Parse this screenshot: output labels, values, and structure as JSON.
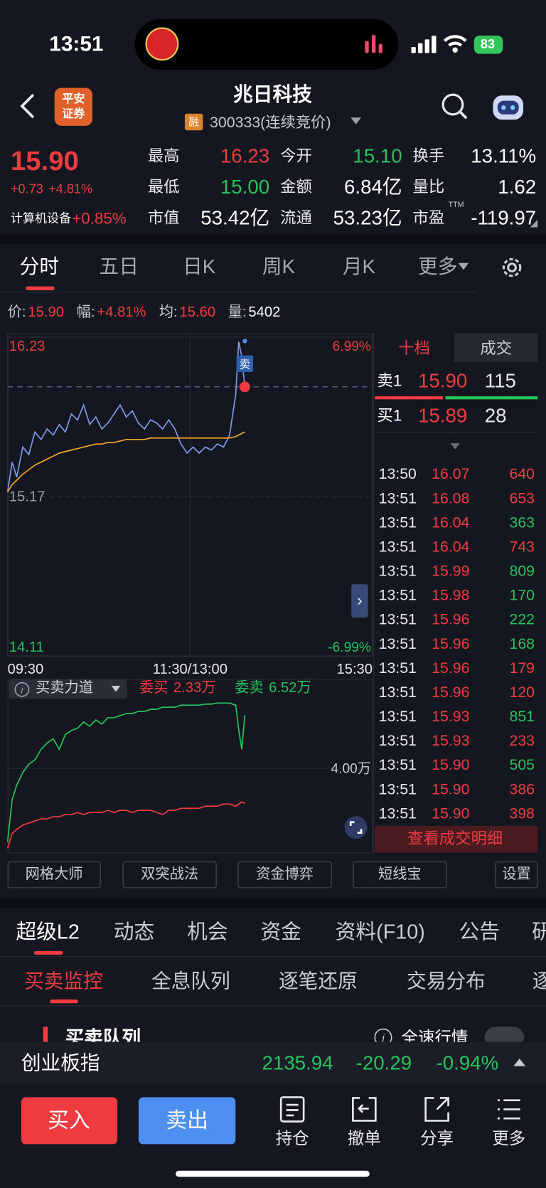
{
  "status_bar": {
    "time": "13:51",
    "battery": "83"
  },
  "header": {
    "broker_logo": [
      "平安",
      "证券"
    ],
    "title": "兆日科技",
    "tag": "融",
    "subtitle": "300333(连续竞价)"
  },
  "quote": {
    "price": "15.90",
    "change": "+0.73",
    "change_pct": "+4.81%",
    "sector": "计算机设备",
    "sector_change": "+0.85%",
    "fields": [
      {
        "label": "最高",
        "value": "16.23",
        "color": "#f03c41"
      },
      {
        "label": "今开",
        "value": "15.10",
        "color": "#27c25c"
      },
      {
        "label": "换手",
        "value": "13.11%",
        "color": "#ffffff"
      },
      {
        "label": "最低",
        "value": "15.00",
        "color": "#27c25c"
      },
      {
        "label": "金额",
        "value": "6.84亿",
        "color": "#ffffff"
      },
      {
        "label": "量比",
        "value": "1.62",
        "color": "#ffffff"
      },
      {
        "label": "市值",
        "value": "53.42亿",
        "color": "#ffffff"
      },
      {
        "label": "流通",
        "value": "53.23亿",
        "color": "#ffffff"
      },
      {
        "label": "市盈",
        "sup": "TTM",
        "value": "-119.97",
        "color": "#ffffff"
      }
    ]
  },
  "period_tabs": [
    "分时",
    "五日",
    "日K",
    "周K",
    "月K",
    "更多"
  ],
  "info_line": [
    {
      "label": "价:",
      "value": "15.90",
      "color": "#f03c41"
    },
    {
      "label": "幅:",
      "value": "+4.81%",
      "color": "#f03c41"
    },
    {
      "label": "均:",
      "value": "15.60",
      "color": "#f03c41"
    },
    {
      "label": "量:",
      "value": "5402",
      "color": "#ffffff"
    }
  ],
  "chart_data": [
    {
      "type": "line",
      "x": [
        0,
        3,
        6,
        10,
        14,
        18,
        22,
        26,
        30,
        34,
        38,
        42,
        46,
        50,
        54,
        58,
        62,
        66,
        70,
        74,
        78,
        82,
        86,
        90,
        94,
        98,
        102,
        106,
        110,
        114,
        118,
        122,
        126,
        130,
        134,
        138,
        142,
        146,
        150,
        152,
        154,
        156
      ],
      "xlim": [
        0,
        240
      ],
      "xticks": [
        {
          "value": 0,
          "label": "09:30"
        },
        {
          "value": 120,
          "label": "11:30/13:00"
        },
        {
          "value": 240,
          "label": "15:30"
        }
      ],
      "ylim": [
        14.11,
        16.23
      ],
      "yticks": [
        16.23,
        15.17,
        14.11
      ],
      "y2lim": [
        -6.99,
        6.99
      ],
      "y2ticks": [
        {
          "value": 6.99,
          "label": "6.99%"
        },
        {
          "value": -6.99,
          "label": "-6.99%"
        }
      ],
      "annotation": "卖",
      "series": [
        {
          "color": "#7f98ea",
          "values": [
            15.2,
            15.4,
            15.3,
            15.5,
            15.45,
            15.6,
            15.55,
            15.62,
            15.58,
            15.65,
            15.6,
            15.72,
            15.68,
            15.78,
            15.65,
            15.7,
            15.62,
            15.66,
            15.72,
            15.78,
            15.7,
            15.74,
            15.66,
            15.62,
            15.68,
            15.66,
            15.62,
            15.68,
            15.62,
            15.52,
            15.46,
            15.5,
            15.46,
            15.5,
            15.48,
            15.52,
            15.5,
            15.58,
            15.85,
            16.2,
            16.1,
            15.9
          ]
        },
        {
          "color": "#f5a623",
          "values": [
            15.2,
            15.25,
            15.28,
            15.32,
            15.35,
            15.38,
            15.4,
            15.42,
            15.44,
            15.46,
            15.47,
            15.48,
            15.49,
            15.5,
            15.51,
            15.52,
            15.52,
            15.53,
            15.53,
            15.54,
            15.55,
            15.55,
            15.55,
            15.55,
            15.56,
            15.56,
            15.56,
            15.56,
            15.56,
            15.56,
            15.56,
            15.56,
            15.56,
            15.56,
            15.56,
            15.56,
            15.56,
            15.56,
            15.57,
            15.58,
            15.59,
            15.6
          ]
        }
      ]
    },
    {
      "type": "line",
      "title": "买卖力道",
      "x": [
        0,
        3,
        6,
        10,
        14,
        18,
        22,
        26,
        30,
        34,
        38,
        42,
        46,
        50,
        54,
        58,
        62,
        66,
        70,
        74,
        78,
        82,
        86,
        90,
        94,
        98,
        102,
        106,
        110,
        114,
        118,
        122,
        126,
        130,
        134,
        138,
        142,
        146,
        150,
        152,
        154,
        156
      ],
      "xlim": [
        0,
        240
      ],
      "ylim": [
        0,
        7.2
      ],
      "yticks": [
        {
          "value": 4,
          "label": "4.00万"
        }
      ],
      "series": [
        {
          "name": "委买",
          "latest_label": "2.33万",
          "color": "#f03c41",
          "values": [
            0.2,
            0.9,
            1.1,
            1.3,
            1.4,
            1.5,
            1.6,
            1.6,
            1.7,
            1.7,
            1.8,
            1.8,
            1.9,
            1.8,
            1.9,
            1.9,
            1.9,
            2.0,
            1.9,
            2.0,
            2.0,
            1.9,
            2.0,
            2.0,
            2.0,
            1.9,
            1.8,
            2.0,
            2.0,
            2.1,
            2.1,
            2.1,
            2.1,
            2.2,
            2.2,
            2.2,
            2.3,
            2.3,
            2.2,
            2.3,
            2.4,
            2.33
          ]
        },
        {
          "name": "委卖",
          "latest_label": "6.52万",
          "color": "#27c25c",
          "values": [
            0.5,
            2.5,
            3.2,
            3.8,
            4.2,
            4.4,
            4.9,
            5.2,
            5.4,
            4.9,
            5.6,
            5.8,
            5.9,
            6.2,
            6.0,
            6.3,
            6.1,
            6.4,
            6.4,
            6.5,
            6.6,
            6.6,
            6.7,
            6.7,
            6.8,
            6.8,
            6.9,
            6.9,
            6.9,
            7.0,
            7.0,
            7.0,
            7.0,
            7.05,
            7.05,
            7.1,
            7.1,
            7.1,
            7.0,
            5.8,
            4.9,
            6.52
          ]
        }
      ]
    }
  ],
  "order_book": {
    "tabs": [
      "十档",
      "成交"
    ],
    "rows": [
      {
        "label": "卖1",
        "price": "15.90",
        "volume": "115"
      },
      {
        "label": "买1",
        "price": "15.89",
        "volume": "28"
      }
    ]
  },
  "trades": [
    {
      "time": "13:50",
      "price": "16.07",
      "volume": "640",
      "color": "#f03c41"
    },
    {
      "time": "13:51",
      "price": "16.08",
      "volume": "653",
      "color": "#f03c41"
    },
    {
      "time": "13:51",
      "price": "16.04",
      "volume": "363",
      "color": "#27c25c"
    },
    {
      "time": "13:51",
      "price": "16.04",
      "volume": "743",
      "color": "#f03c41"
    },
    {
      "time": "13:51",
      "price": "15.99",
      "volume": "809",
      "color": "#27c25c"
    },
    {
      "time": "13:51",
      "price": "15.98",
      "volume": "170",
      "color": "#27c25c"
    },
    {
      "time": "13:51",
      "price": "15.96",
      "volume": "222",
      "color": "#27c25c"
    },
    {
      "time": "13:51",
      "price": "15.96",
      "volume": "168",
      "color": "#27c25c"
    },
    {
      "time": "13:51",
      "price": "15.96",
      "volume": "179",
      "color": "#f03c41"
    },
    {
      "time": "13:51",
      "price": "15.96",
      "volume": "120",
      "color": "#f03c41"
    },
    {
      "time": "13:51",
      "price": "15.93",
      "volume": "851",
      "color": "#27c25c"
    },
    {
      "time": "13:51",
      "price": "15.93",
      "volume": "233",
      "color": "#f03c41"
    },
    {
      "time": "13:51",
      "price": "15.90",
      "volume": "505",
      "color": "#27c25c"
    },
    {
      "time": "13:51",
      "price": "15.90",
      "volume": "386",
      "color": "#f03c41"
    },
    {
      "time": "13:51",
      "price": "15.90",
      "volume": "398",
      "color": "#f03c41"
    }
  ],
  "trades_button": "查看成交明细",
  "tools": [
    "网格大师",
    "双突战法",
    "资金博弈",
    "短线宝",
    "设置"
  ],
  "section_tabs": [
    "超级L2",
    "动态",
    "机会",
    "资金",
    "资料(F10)",
    "公告",
    "研"
  ],
  "sub_tabs": [
    "买卖监控",
    "全息队列",
    "逐笔还原",
    "交易分布",
    "逐"
  ],
  "monitor": {
    "title": "买卖队列",
    "toggle": "全速行情"
  },
  "index_bar": {
    "name": "创业板指",
    "value": "2135.94",
    "change": "-20.29",
    "change_pct": "-0.94%"
  },
  "actions": {
    "buy": "买入",
    "sell": "卖出",
    "items": [
      "持仓",
      "撤单",
      "分享",
      "更多"
    ]
  }
}
